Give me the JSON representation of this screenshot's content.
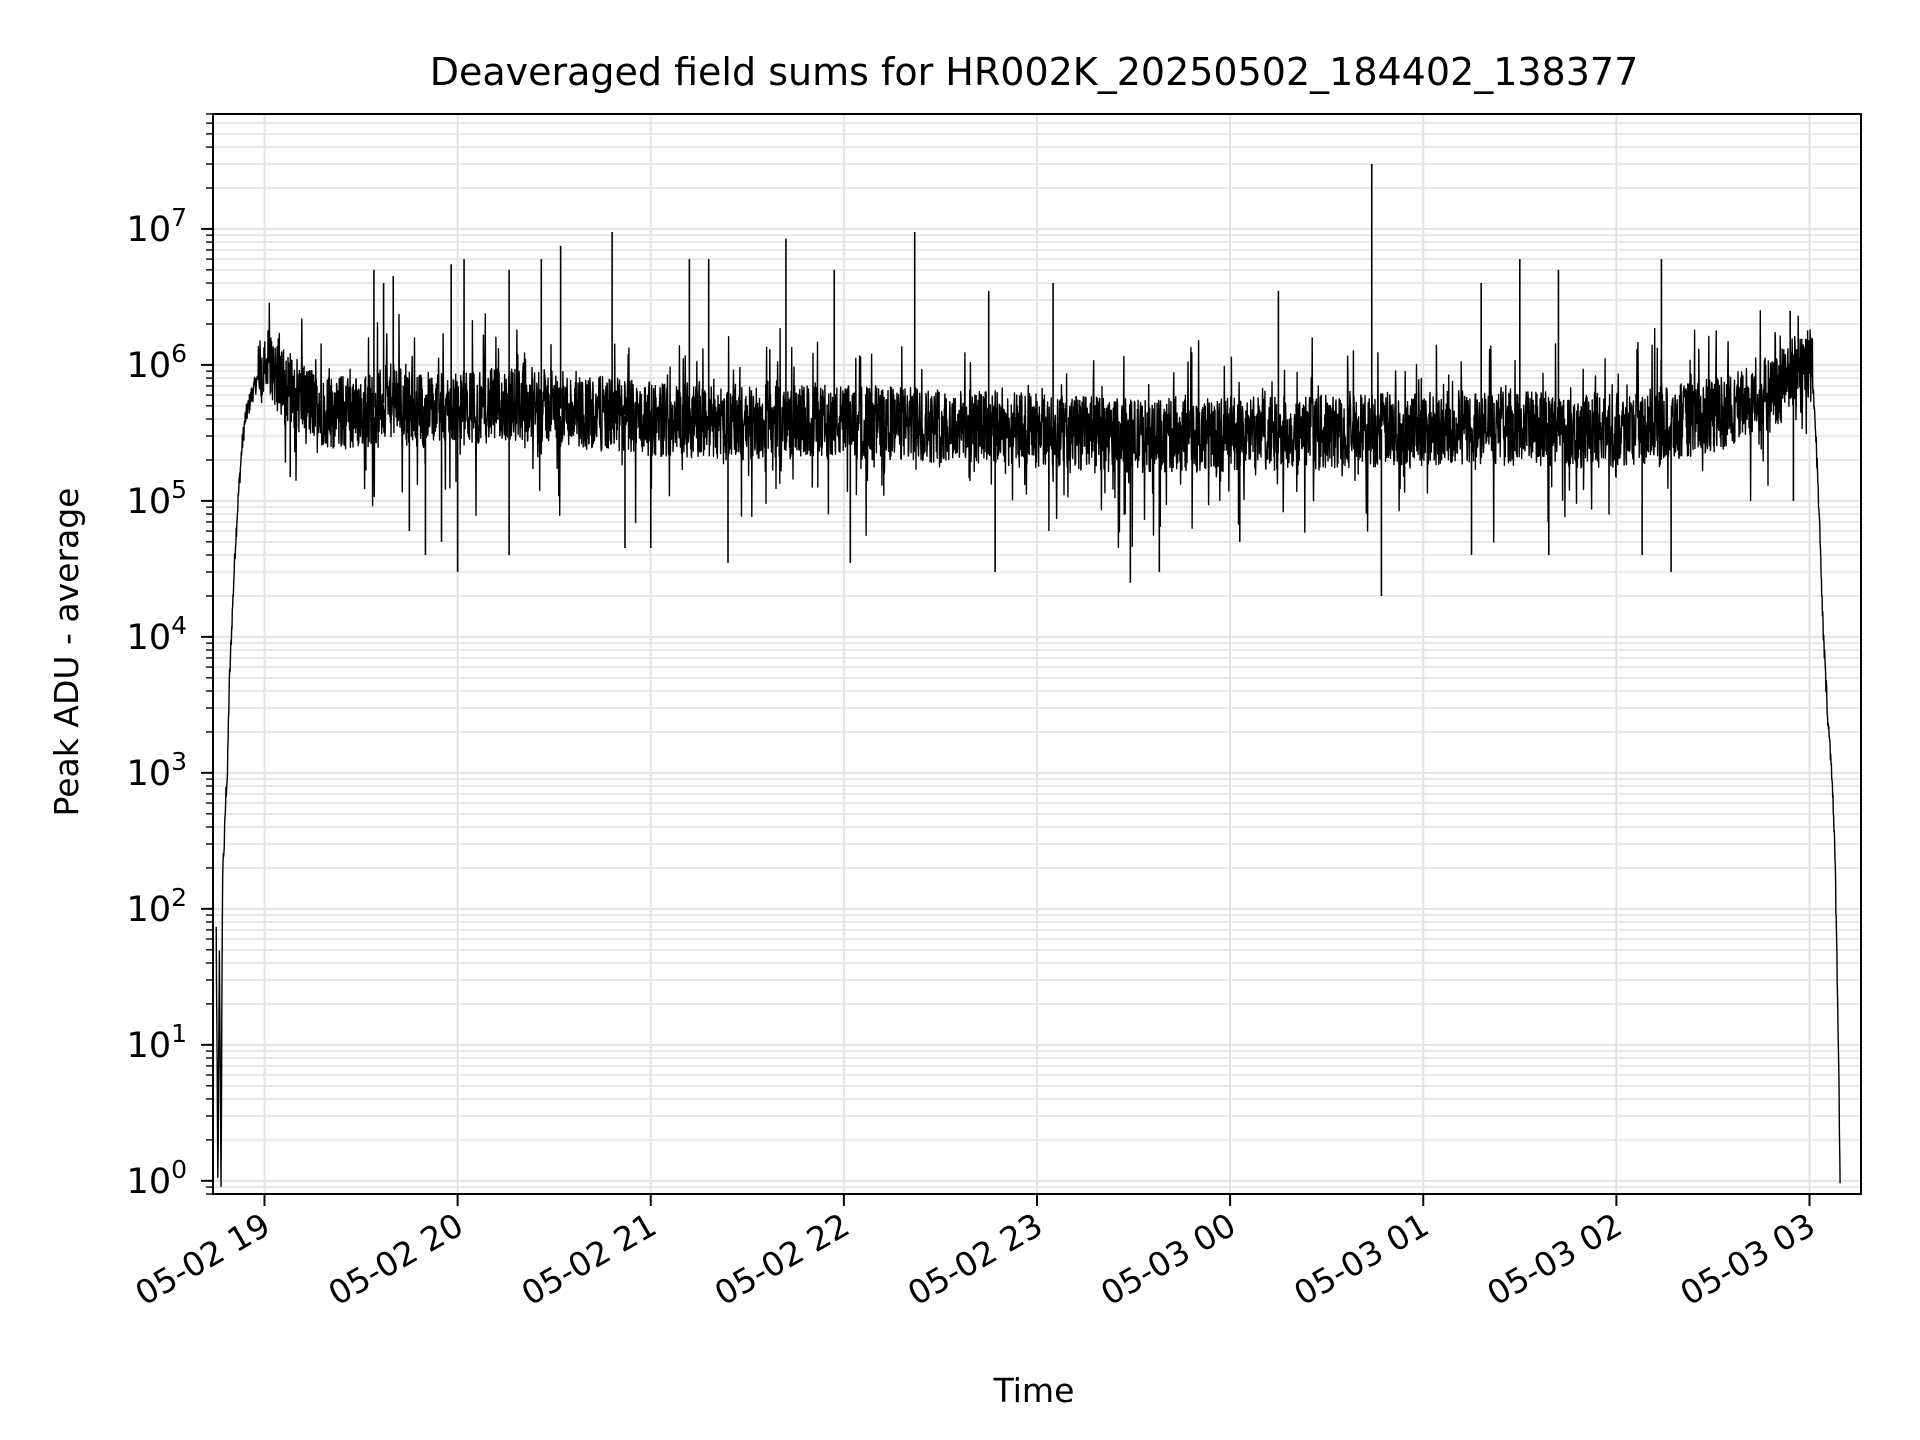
{
  "chart_data": {
    "type": "line",
    "title": "Deaveraged field sums for HR002K_20250502_184402_138377",
    "xlabel": "Time",
    "ylabel": "Peak ADU - average",
    "x_is_time": true,
    "x_range": [
      "2025-05-02 18:44:00",
      "2025-05-03 03:16:00"
    ],
    "xticks": [
      {
        "t": "2025-05-02 19:00",
        "label": "05-02 19"
      },
      {
        "t": "2025-05-02 20:00",
        "label": "05-02 20"
      },
      {
        "t": "2025-05-02 21:00",
        "label": "05-02 21"
      },
      {
        "t": "2025-05-02 22:00",
        "label": "05-02 22"
      },
      {
        "t": "2025-05-02 23:00",
        "label": "05-02 23"
      },
      {
        "t": "2025-05-03 00:00",
        "label": "05-03 00"
      },
      {
        "t": "2025-05-03 01:00",
        "label": "05-03 01"
      },
      {
        "t": "2025-05-03 02:00",
        "label": "05-03 02"
      },
      {
        "t": "2025-05-03 03:00",
        "label": "05-03 03"
      }
    ],
    "y_scale": "log",
    "ylim": [
      0.8,
      70000000
    ],
    "yticks": [
      {
        "value": 1,
        "base": "10",
        "exp": "0"
      },
      {
        "value": 10,
        "base": "10",
        "exp": "1"
      },
      {
        "value": 100,
        "base": "10",
        "exp": "2"
      },
      {
        "value": 1000,
        "base": "10",
        "exp": "3"
      },
      {
        "value": 10000,
        "base": "10",
        "exp": "4"
      },
      {
        "value": 100000,
        "base": "10",
        "exp": "5"
      },
      {
        "value": 1000000,
        "base": "10",
        "exp": "6"
      },
      {
        "value": 10000000,
        "base": "10",
        "exp": "7"
      }
    ],
    "grid": "both (major and minor), light gray",
    "line_color": "#000000",
    "series": [
      {
        "points": [
          [
            "2025-05-02 18:45:00",
            70
          ],
          [
            "2025-05-02 18:45:30",
            1
          ],
          [
            "2025-05-02 18:46:00",
            45
          ],
          [
            "2025-05-02 18:46:30",
            1
          ],
          [
            "2025-05-02 18:47:00",
            200
          ],
          [
            "2025-05-02 18:47:30",
            300
          ],
          [
            "2025-05-02 18:48:00",
            700
          ],
          [
            "2025-05-02 18:48:30",
            1000
          ],
          [
            "2025-05-02 18:49:00",
            4000
          ],
          [
            "2025-05-02 18:50:00",
            15000
          ],
          [
            "2025-05-02 18:51:00",
            50000
          ],
          [
            "2025-05-02 18:52:00",
            120000
          ],
          [
            "2025-05-02 18:53:00",
            250000
          ],
          [
            "2025-05-02 18:54:00",
            400000
          ],
          [
            "2025-05-02 18:56:00",
            600000
          ],
          [
            "2025-05-02 18:58:00",
            800000
          ],
          [
            "2025-05-02 19:00:00",
            900000
          ],
          [
            "2025-05-02 19:02:00",
            1000000
          ],
          [
            "2025-05-02 19:05:00",
            800000
          ],
          [
            "2025-05-02 19:10:00",
            600000
          ],
          [
            "2025-05-02 19:20:00",
            450000
          ],
          [
            "2025-05-02 19:30:00",
            450000
          ],
          [
            "2025-05-02 19:40:00",
            550000
          ],
          [
            "2025-05-02 19:50:00",
            450000
          ],
          [
            "2025-05-02 20:00:00",
            480000
          ],
          [
            "2025-05-02 20:20:00",
            520000
          ],
          [
            "2025-05-02 20:40:00",
            450000
          ],
          [
            "2025-05-02 21:00:00",
            400000
          ],
          [
            "2025-05-02 21:30:00",
            380000
          ],
          [
            "2025-05-02 22:00:00",
            380000
          ],
          [
            "2025-05-02 22:30:00",
            360000
          ],
          [
            "2025-05-02 23:00:00",
            330000
          ],
          [
            "2025-05-02 23:30:00",
            300000
          ],
          [
            "2025-05-03 00:00:00",
            310000
          ],
          [
            "2025-05-03 00:30:00",
            320000
          ],
          [
            "2025-05-03 01:00:00",
            350000
          ],
          [
            "2025-05-03 01:30:00",
            340000
          ],
          [
            "2025-05-03 02:00:00",
            330000
          ],
          [
            "2025-05-03 02:30:00",
            420000
          ],
          [
            "2025-05-03 02:50:00",
            650000
          ],
          [
            "2025-05-03 02:58:00",
            1000000
          ],
          [
            "2025-05-03 03:00:00",
            1100000
          ],
          [
            "2025-05-03 03:01:00",
            800000
          ],
          [
            "2025-05-03 03:02:00",
            300000
          ],
          [
            "2025-05-03 03:03:00",
            80000
          ],
          [
            "2025-05-03 03:04:00",
            15000
          ],
          [
            "2025-05-03 03:05:00",
            5000
          ],
          [
            "2025-05-03 03:06:00",
            2000
          ],
          [
            "2025-05-03 03:07:00",
            1000
          ],
          [
            "2025-05-03 03:08:00",
            200
          ],
          [
            "2025-05-03 03:09:00",
            10
          ],
          [
            "2025-05-03 03:09:30",
            1
          ]
        ],
        "spikes_up": [
          [
            "2025-05-02 19:34:00",
            5000000
          ],
          [
            "2025-05-02 19:37:00",
            4000000
          ],
          [
            "2025-05-02 19:40:00",
            4500000
          ],
          [
            "2025-05-02 19:58:00",
            5500000
          ],
          [
            "2025-05-02 20:02:00",
            6000000
          ],
          [
            "2025-05-02 20:16:00",
            5000000
          ],
          [
            "2025-05-02 20:26:00",
            6000000
          ],
          [
            "2025-05-02 20:32:00",
            7500000
          ],
          [
            "2025-05-02 20:48:00",
            9500000
          ],
          [
            "2025-05-02 21:12:00",
            6000000
          ],
          [
            "2025-05-02 21:18:00",
            6000000
          ],
          [
            "2025-05-02 21:42:00",
            8500000
          ],
          [
            "2025-05-02 21:57:00",
            5000000
          ],
          [
            "2025-05-02 22:22:00",
            9500000
          ],
          [
            "2025-05-02 22:45:00",
            3500000
          ],
          [
            "2025-05-02 23:05:00",
            4000000
          ],
          [
            "2025-05-03 00:15:00",
            3500000
          ],
          [
            "2025-05-03 00:44:00",
            30000000
          ],
          [
            "2025-05-03 01:18:00",
            4000000
          ],
          [
            "2025-05-03 01:30:00",
            6000000
          ],
          [
            "2025-05-03 01:42:00",
            5000000
          ],
          [
            "2025-05-03 02:14:00",
            6000000
          ],
          [
            "2025-05-03 02:54:00",
            2500000
          ]
        ],
        "spikes_down": [
          [
            "2025-05-02 19:08:00",
            150000
          ],
          [
            "2025-05-02 19:45:00",
            60000
          ],
          [
            "2025-05-02 19:50:00",
            40000
          ],
          [
            "2025-05-02 19:55:00",
            50000
          ],
          [
            "2025-05-02 20:00:00",
            30000
          ],
          [
            "2025-05-02 20:16:00",
            40000
          ],
          [
            "2025-05-02 20:52:00",
            45000
          ],
          [
            "2025-05-02 21:00:00",
            45000
          ],
          [
            "2025-05-02 21:24:00",
            35000
          ],
          [
            "2025-05-02 22:02:00",
            35000
          ],
          [
            "2025-05-02 22:47:00",
            30000
          ],
          [
            "2025-05-02 23:29:00",
            25000
          ],
          [
            "2025-05-02 23:38:00",
            30000
          ],
          [
            "2025-05-03 00:03:00",
            50000
          ],
          [
            "2025-05-03 00:47:00",
            20000
          ],
          [
            "2025-05-03 01:15:00",
            40000
          ],
          [
            "2025-05-03 01:39:00",
            40000
          ],
          [
            "2025-05-03 02:08:00",
            40000
          ],
          [
            "2025-05-03 02:17:00",
            30000
          ],
          [
            "2025-05-03 02:55:00",
            100000
          ]
        ]
      }
    ]
  }
}
